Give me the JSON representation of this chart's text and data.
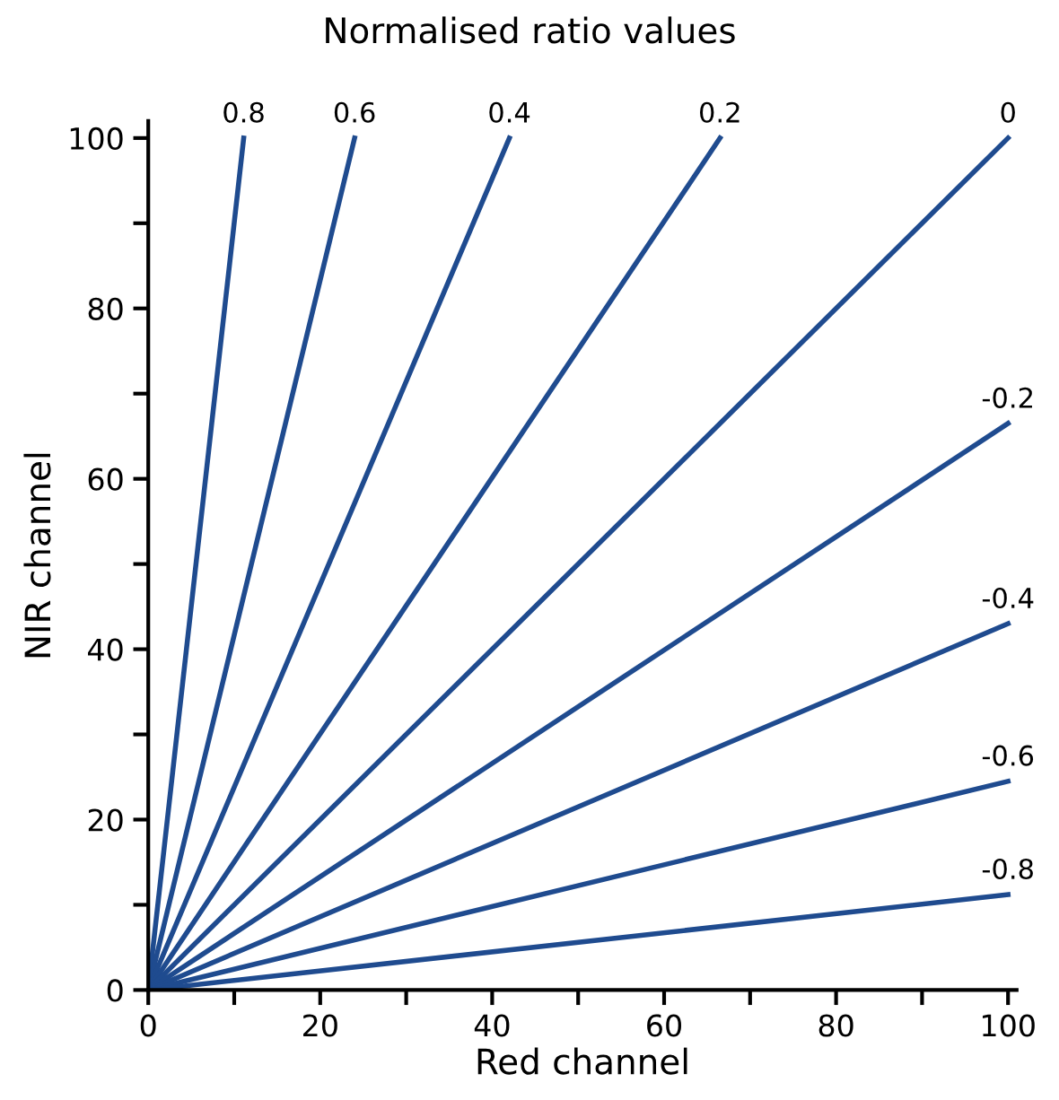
{
  "chart_data": {
    "type": "line",
    "title": "Normalised ratio values",
    "xlabel": "Red channel",
    "ylabel": "NIR channel",
    "xlim": [
      0,
      101
    ],
    "ylim": [
      0,
      102
    ],
    "xticks": [
      0,
      {
        "value": 10,
        "label": null
      },
      20,
      {
        "value": 30,
        "label": null
      },
      40,
      {
        "value": 50,
        "label": null
      },
      60,
      {
        "value": 70,
        "label": null
      },
      80,
      {
        "value": 90,
        "label": null
      },
      100
    ],
    "yticks": [
      0,
      {
        "value": 10,
        "label": null
      },
      20,
      {
        "value": 30,
        "label": null
      },
      40,
      {
        "value": 50,
        "label": null
      },
      60,
      {
        "value": 70,
        "label": null
      },
      80,
      {
        "value": 90,
        "label": null
      },
      100
    ],
    "grid": false,
    "legend": false,
    "marker": "none",
    "line_style": "solid",
    "series": [
      {
        "name": "0.8",
        "color": "#1f4b8f",
        "x": [
          0,
          11.1
        ],
        "values": [
          0,
          100
        ]
      },
      {
        "name": "0.6",
        "color": "#1f4b8f",
        "x": [
          0,
          24
        ],
        "values": [
          0,
          100
        ]
      },
      {
        "name": "0.4",
        "color": "#1f4b8f",
        "x": [
          0,
          42
        ],
        "values": [
          0,
          100
        ]
      },
      {
        "name": "0.2",
        "color": "#1f4b8f",
        "x": [
          0,
          66.5
        ],
        "values": [
          0,
          100
        ]
      },
      {
        "name": "0",
        "color": "#1f4b8f",
        "x": [
          0,
          100
        ],
        "values": [
          0,
          100
        ]
      },
      {
        "name": "-0.2",
        "color": "#1f4b8f",
        "x": [
          0,
          100
        ],
        "values": [
          0,
          66.5
        ]
      },
      {
        "name": "-0.4",
        "color": "#1f4b8f",
        "x": [
          0,
          100
        ],
        "values": [
          0,
          43
        ]
      },
      {
        "name": "-0.6",
        "color": "#1f4b8f",
        "x": [
          0,
          100
        ],
        "values": [
          0,
          24.5
        ]
      },
      {
        "name": "-0.8",
        "color": "#1f4b8f",
        "x": [
          0,
          100
        ],
        "values": [
          0,
          11.2
        ]
      }
    ]
  }
}
